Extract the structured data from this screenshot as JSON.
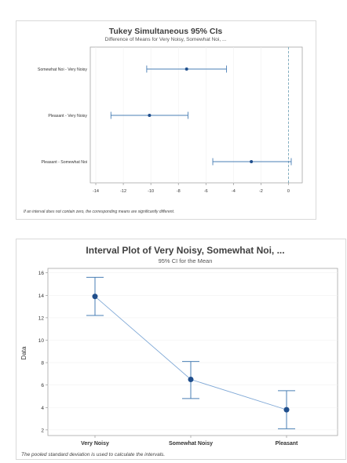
{
  "chart_data": [
    {
      "type": "interval",
      "title": "Tukey Simultaneous 95% CIs",
      "subtitle": "Difference of Means for Very Noisy, Somewhat Noi, ...",
      "orientation": "horizontal",
      "categories": [
        "Somewhat Noi - Very Noisy",
        "Pleasant - Very Noisy",
        "Pleasant - Somewhat Noi"
      ],
      "estimates": [
        -7.4,
        -10.1,
        -2.7
      ],
      "lower": [
        -10.3,
        -12.9,
        -5.5
      ],
      "upper": [
        -4.5,
        -7.3,
        0.2
      ],
      "xlim": [
        -14.4,
        1.0
      ],
      "xticks": [
        "-14",
        "-12",
        "-10",
        "-8",
        "-6",
        "-4",
        "-2",
        "0"
      ],
      "reference_line": 0,
      "note": "If an interval does not contain zero, the corresponding means are significantly different."
    },
    {
      "type": "interval",
      "title": "Interval Plot of Very Noisy, Somewhat Noi, ...",
      "subtitle": "95% CI for the Mean",
      "orientation": "vertical",
      "categories": [
        "Very Noisy",
        "Somewhat Noisy",
        "Pleasant"
      ],
      "means": [
        13.9,
        6.5,
        3.8
      ],
      "lower": [
        12.2,
        4.8,
        2.1
      ],
      "upper": [
        15.6,
        8.1,
        5.5
      ],
      "ylabel": "Data",
      "ylim": [
        1.5,
        16.4
      ],
      "yticks": [
        "16",
        "14",
        "12",
        "10",
        "8",
        "6",
        "4",
        "2"
      ],
      "connect_means": true,
      "note": "The pooled standard deviation is used to calculate the intervals."
    }
  ],
  "colors": {
    "interval": "#4a7fb5",
    "point": "#1f4e8c",
    "connector": "#7fa8d6",
    "reference": "#6a9fb5"
  }
}
